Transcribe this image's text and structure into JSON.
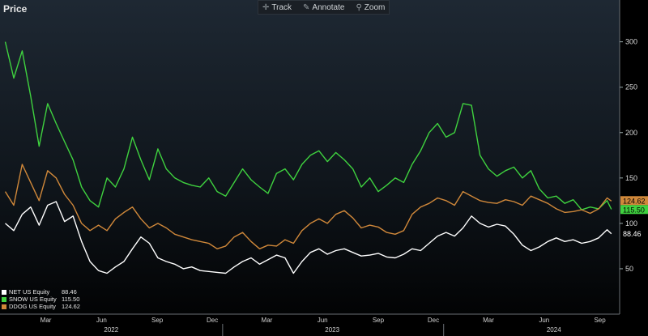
{
  "window": {
    "title": "Price",
    "toolbar": [
      {
        "label": "Track",
        "icon": "crosshair-icon"
      },
      {
        "label": "Annotate",
        "icon": "pencil-icon"
      },
      {
        "label": "Zoom",
        "icon": "magnifier-icon"
      }
    ]
  },
  "chart_data": {
    "type": "line",
    "title": "Price",
    "ylim": [
      0,
      330
    ],
    "yticks": [
      50,
      100,
      150,
      200,
      250,
      300
    ],
    "month_labels": [
      "Mar",
      "Jun",
      "Sep",
      "Dec",
      "Mar",
      "Jun",
      "Sep",
      "Dec",
      "Mar",
      "Jun",
      "Sep"
    ],
    "year_labels": [
      "2022",
      "2023",
      "2024"
    ],
    "x_start": "2022-01",
    "x_end": "2024-10",
    "series": [
      {
        "name": "NET US Equity",
        "last": "88.46",
        "color": "#ffffff",
        "x": [
          "2022-01-07",
          "2022-01-21",
          "2022-02-04",
          "2022-02-18",
          "2022-03-04",
          "2022-03-18",
          "2022-04-01",
          "2022-04-15",
          "2022-04-29",
          "2022-05-13",
          "2022-05-27",
          "2022-06-10",
          "2022-06-24",
          "2022-07-08",
          "2022-07-22",
          "2022-08-05",
          "2022-08-19",
          "2022-09-02",
          "2022-09-16",
          "2022-09-30",
          "2022-10-14",
          "2022-10-28",
          "2022-11-11",
          "2022-11-25",
          "2022-12-09",
          "2022-12-23",
          "2023-01-06",
          "2023-01-20",
          "2023-02-03",
          "2023-02-17",
          "2023-03-03",
          "2023-03-17",
          "2023-03-31",
          "2023-04-14",
          "2023-04-28",
          "2023-05-12",
          "2023-05-26",
          "2023-06-09",
          "2023-06-23",
          "2023-07-07",
          "2023-07-21",
          "2023-08-04",
          "2023-08-18",
          "2023-09-01",
          "2023-09-15",
          "2023-09-29",
          "2023-10-13",
          "2023-10-27",
          "2023-11-10",
          "2023-11-24",
          "2023-12-08",
          "2023-12-22",
          "2024-01-05",
          "2024-01-19",
          "2024-02-02",
          "2024-02-16",
          "2024-03-01",
          "2024-03-15",
          "2024-03-29",
          "2024-04-12",
          "2024-04-26",
          "2024-05-10",
          "2024-05-24",
          "2024-06-07",
          "2024-06-21",
          "2024-07-05",
          "2024-07-19",
          "2024-08-02",
          "2024-08-16",
          "2024-08-30",
          "2024-09-13",
          "2024-09-27",
          "2024-10-04"
        ],
        "values": [
          100,
          92,
          110,
          118,
          98,
          120,
          124,
          102,
          108,
          80,
          58,
          48,
          45,
          52,
          58,
          72,
          85,
          78,
          62,
          58,
          55,
          50,
          52,
          48,
          47,
          46,
          45,
          52,
          58,
          62,
          55,
          60,
          65,
          62,
          45,
          58,
          68,
          72,
          66,
          70,
          72,
          68,
          64,
          65,
          67,
          63,
          62,
          66,
          72,
          70,
          78,
          86,
          90,
          86,
          95,
          108,
          100,
          96,
          99,
          97,
          88,
          76,
          70,
          74,
          80,
          84,
          80,
          82,
          78,
          80,
          84,
          93,
          88.46
        ]
      },
      {
        "name": "SNOW US Equity",
        "last": "115.50",
        "color": "#3fd23f",
        "x": [
          "2022-01-07",
          "2022-01-21",
          "2022-02-04",
          "2022-02-18",
          "2022-03-04",
          "2022-03-18",
          "2022-04-01",
          "2022-04-15",
          "2022-04-29",
          "2022-05-13",
          "2022-05-27",
          "2022-06-10",
          "2022-06-24",
          "2022-07-08",
          "2022-07-22",
          "2022-08-05",
          "2022-08-19",
          "2022-09-02",
          "2022-09-16",
          "2022-09-30",
          "2022-10-14",
          "2022-10-28",
          "2022-11-11",
          "2022-11-25",
          "2022-12-09",
          "2022-12-23",
          "2023-01-06",
          "2023-01-20",
          "2023-02-03",
          "2023-02-17",
          "2023-03-03",
          "2023-03-17",
          "2023-03-31",
          "2023-04-14",
          "2023-04-28",
          "2023-05-12",
          "2023-05-26",
          "2023-06-09",
          "2023-06-23",
          "2023-07-07",
          "2023-07-21",
          "2023-08-04",
          "2023-08-18",
          "2023-09-01",
          "2023-09-15",
          "2023-09-29",
          "2023-10-13",
          "2023-10-27",
          "2023-11-10",
          "2023-11-24",
          "2023-12-08",
          "2023-12-22",
          "2024-01-05",
          "2024-01-19",
          "2024-02-02",
          "2024-02-16",
          "2024-03-01",
          "2024-03-15",
          "2024-03-29",
          "2024-04-12",
          "2024-04-26",
          "2024-05-10",
          "2024-05-24",
          "2024-06-07",
          "2024-06-21",
          "2024-07-05",
          "2024-07-19",
          "2024-08-02",
          "2024-08-16",
          "2024-08-30",
          "2024-09-13",
          "2024-09-27",
          "2024-10-04"
        ],
        "values": [
          300,
          260,
          290,
          240,
          185,
          232,
          210,
          190,
          170,
          140,
          125,
          118,
          150,
          140,
          160,
          195,
          170,
          148,
          182,
          160,
          150,
          145,
          142,
          140,
          150,
          135,
          130,
          145,
          160,
          148,
          140,
          133,
          155,
          160,
          148,
          165,
          175,
          180,
          168,
          178,
          170,
          160,
          140,
          150,
          135,
          142,
          150,
          145,
          165,
          180,
          200,
          210,
          195,
          200,
          232,
          230,
          175,
          160,
          152,
          158,
          162,
          150,
          158,
          138,
          128,
          130,
          122,
          126,
          115,
          118,
          116,
          125,
          115.5
        ]
      },
      {
        "name": "DDOG US Equity",
        "last": "124.62",
        "color": "#d0883a",
        "x": [
          "2022-01-07",
          "2022-01-21",
          "2022-02-04",
          "2022-02-18",
          "2022-03-04",
          "2022-03-18",
          "2022-04-01",
          "2022-04-15",
          "2022-04-29",
          "2022-05-13",
          "2022-05-27",
          "2022-06-10",
          "2022-06-24",
          "2022-07-08",
          "2022-07-22",
          "2022-08-05",
          "2022-08-19",
          "2022-09-02",
          "2022-09-16",
          "2022-09-30",
          "2022-10-14",
          "2022-10-28",
          "2022-11-11",
          "2022-11-25",
          "2022-12-09",
          "2022-12-23",
          "2023-01-06",
          "2023-01-20",
          "2023-02-03",
          "2023-02-17",
          "2023-03-03",
          "2023-03-17",
          "2023-03-31",
          "2023-04-14",
          "2023-04-28",
          "2023-05-12",
          "2023-05-26",
          "2023-06-09",
          "2023-06-23",
          "2023-07-07",
          "2023-07-21",
          "2023-08-04",
          "2023-08-18",
          "2023-09-01",
          "2023-09-15",
          "2023-09-29",
          "2023-10-13",
          "2023-10-27",
          "2023-11-10",
          "2023-11-24",
          "2023-12-08",
          "2023-12-22",
          "2024-01-05",
          "2024-01-19",
          "2024-02-02",
          "2024-02-16",
          "2024-03-01",
          "2024-03-15",
          "2024-03-29",
          "2024-04-12",
          "2024-04-26",
          "2024-05-10",
          "2024-05-24",
          "2024-06-07",
          "2024-06-21",
          "2024-07-05",
          "2024-07-19",
          "2024-08-02",
          "2024-08-16",
          "2024-08-30",
          "2024-09-13",
          "2024-09-27",
          "2024-10-04"
        ],
        "values": [
          135,
          120,
          165,
          145,
          125,
          158,
          150,
          132,
          120,
          100,
          92,
          98,
          92,
          105,
          112,
          118,
          105,
          95,
          100,
          95,
          88,
          85,
          82,
          80,
          78,
          72,
          75,
          85,
          90,
          80,
          72,
          76,
          75,
          82,
          78,
          92,
          100,
          105,
          100,
          110,
          114,
          106,
          95,
          98,
          96,
          90,
          88,
          92,
          110,
          118,
          122,
          128,
          125,
          120,
          135,
          130,
          125,
          123,
          122,
          126,
          124,
          120,
          130,
          126,
          122,
          116,
          112,
          113,
          115,
          111,
          116,
          128,
          124.62
        ]
      }
    ]
  }
}
